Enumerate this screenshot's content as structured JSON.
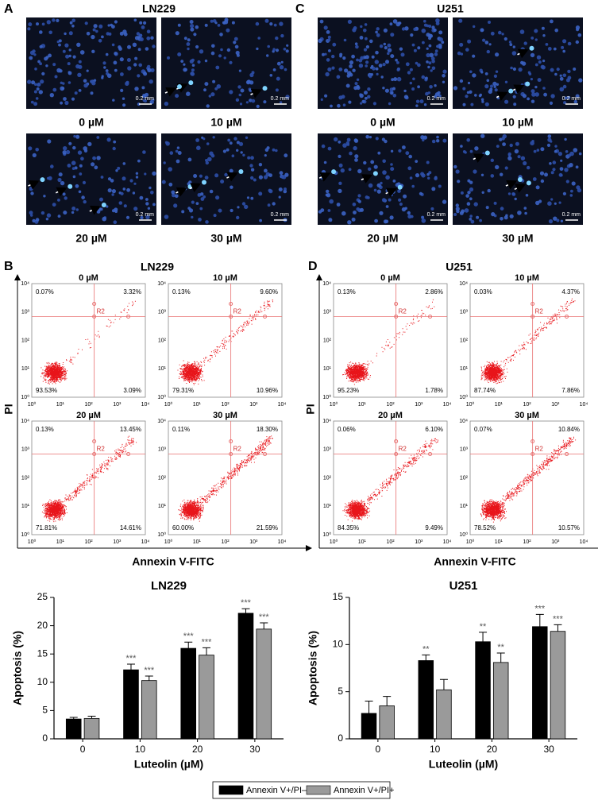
{
  "microscopy": {
    "scale": "0.2 mm",
    "panels": [
      {
        "label": "A",
        "title": "LN229",
        "images": [
          {
            "label": "0 µM"
          },
          {
            "label": "10 µM"
          },
          {
            "label": "20 µM"
          },
          {
            "label": "30 µM"
          }
        ]
      },
      {
        "label": "C",
        "title": "U251",
        "images": [
          {
            "label": "0 µM"
          },
          {
            "label": "10 µM"
          },
          {
            "label": "20 µM"
          },
          {
            "label": "30 µM"
          }
        ]
      }
    ]
  },
  "flow": {
    "xlabel": "Annexin V-FITC",
    "ylabel": "PI",
    "gate": "R2",
    "ticks": [
      "10⁰",
      "10¹",
      "10²",
      "10³",
      "10⁴"
    ],
    "panels": [
      {
        "label": "B",
        "title": "LN229",
        "plots": [
          {
            "title": "0 µM",
            "quadrants": [
              "0.07%",
              "3.32%",
              "93.53%",
              "3.09%"
            ]
          },
          {
            "title": "10 µM",
            "quadrants": [
              "0.13%",
              "9.60%",
              "79.31%",
              "10.96%"
            ]
          },
          {
            "title": "20 µM",
            "quadrants": [
              "0.13%",
              "13.45%",
              "71.81%",
              "14.61%"
            ]
          },
          {
            "title": "30 µM",
            "quadrants": [
              "0.11%",
              "18.30%",
              "60.00%",
              "21.59%"
            ]
          }
        ]
      },
      {
        "label": "D",
        "title": "U251",
        "plots": [
          {
            "title": "0 µM",
            "quadrants": [
              "0.13%",
              "2.86%",
              "95.23%",
              "1.78%"
            ]
          },
          {
            "title": "10 µM",
            "quadrants": [
              "0.03%",
              "4.37%",
              "87.74%",
              "7.86%"
            ]
          },
          {
            "title": "20 µM",
            "quadrants": [
              "0.06%",
              "6.10%",
              "84.35%",
              "9.49%"
            ]
          },
          {
            "title": "30 µM",
            "quadrants": [
              "0.07%",
              "10.84%",
              "78.52%",
              "10.57%"
            ]
          }
        ]
      }
    ]
  },
  "chart_data": [
    {
      "type": "bar",
      "title": "LN229",
      "xlabel": "Luteolin (µM)",
      "ylabel": "Apoptosis (%)",
      "categories": [
        "0",
        "10",
        "20",
        "30"
      ],
      "ylim": [
        0,
        25
      ],
      "yticks": [
        0,
        5,
        10,
        15,
        20,
        25
      ],
      "legend": "bottom",
      "series": [
        {
          "name": "Annexin V+/PI–",
          "color": "#000000",
          "values": [
            3.5,
            12.2,
            16,
            22.2
          ],
          "errors": [
            0.3,
            1.0,
            1.1,
            0.8
          ],
          "annotations": [
            null,
            "***",
            "***",
            "***"
          ]
        },
        {
          "name": "Annexin V+/PI+",
          "color": "#9a9a9a",
          "values": [
            3.6,
            10.3,
            14.8,
            19.4
          ],
          "errors": [
            0.4,
            0.8,
            1.3,
            1.1
          ],
          "annotations": [
            null,
            "***",
            "***",
            "***"
          ]
        }
      ]
    },
    {
      "type": "bar",
      "title": "U251",
      "xlabel": "Luteolin (µM)",
      "ylabel": "Apoptosis (%)",
      "categories": [
        "0",
        "10",
        "20",
        "30"
      ],
      "ylim": [
        0,
        15
      ],
      "yticks": [
        0,
        5,
        10,
        15
      ],
      "legend": "bottom",
      "series": [
        {
          "name": "Annexin V+/PI–",
          "color": "#000000",
          "values": [
            2.7,
            8.3,
            10.3,
            11.9
          ],
          "errors": [
            1.3,
            0.6,
            1.0,
            1.3
          ],
          "annotations": [
            null,
            "**",
            "**",
            "***"
          ]
        },
        {
          "name": "Annexin V+/PI+",
          "color": "#9a9a9a",
          "values": [
            3.5,
            5.2,
            8.1,
            11.4
          ],
          "errors": [
            1.0,
            1.1,
            1.0,
            0.7
          ],
          "annotations": [
            null,
            null,
            "**",
            "***"
          ]
        }
      ]
    }
  ]
}
